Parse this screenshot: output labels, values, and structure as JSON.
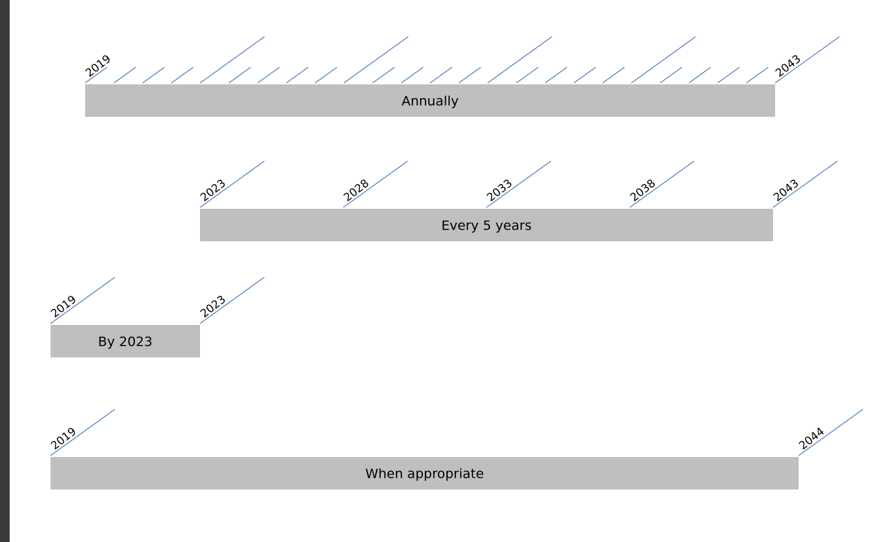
{
  "colors": {
    "bar": "#bfbfbf",
    "tick": "#4a7ebb",
    "frame": "#3a3a3a",
    "background": "#ffffff"
  },
  "timelines": [
    {
      "label": "Annually",
      "start": 2019,
      "end": 2043,
      "tick_years": [
        2019,
        2020,
        2021,
        2022,
        2023,
        2024,
        2025,
        2026,
        2027,
        2028,
        2029,
        2030,
        2031,
        2032,
        2033,
        2034,
        2035,
        2036,
        2037,
        2038,
        2039,
        2040,
        2041,
        2042,
        2043
      ],
      "long_tick_years": [
        2023,
        2028,
        2033,
        2038,
        2043
      ],
      "labeled_years": [
        "2019",
        "2043"
      ]
    },
    {
      "label": "Every 5 years",
      "start": 2023,
      "end": 2043,
      "tick_years": [
        2023,
        2028,
        2033,
        2038,
        2043
      ],
      "long_tick_years": [
        2023,
        2028,
        2033,
        2038,
        2043
      ],
      "labeled_years": [
        "2023",
        "2028",
        "2033",
        "2038",
        "2043"
      ]
    },
    {
      "label": "By 2023",
      "start": 2019,
      "end": 2023,
      "tick_years": [
        2019,
        2023
      ],
      "long_tick_years": [
        2019,
        2023
      ],
      "labeled_years": [
        "2019",
        "2023"
      ]
    },
    {
      "label": "When appropriate",
      "start": 2019,
      "end": 2044,
      "tick_years": [
        2019,
        2044
      ],
      "long_tick_years": [
        2019,
        2044
      ],
      "labeled_years": [
        "2019",
        "2044"
      ]
    }
  ]
}
